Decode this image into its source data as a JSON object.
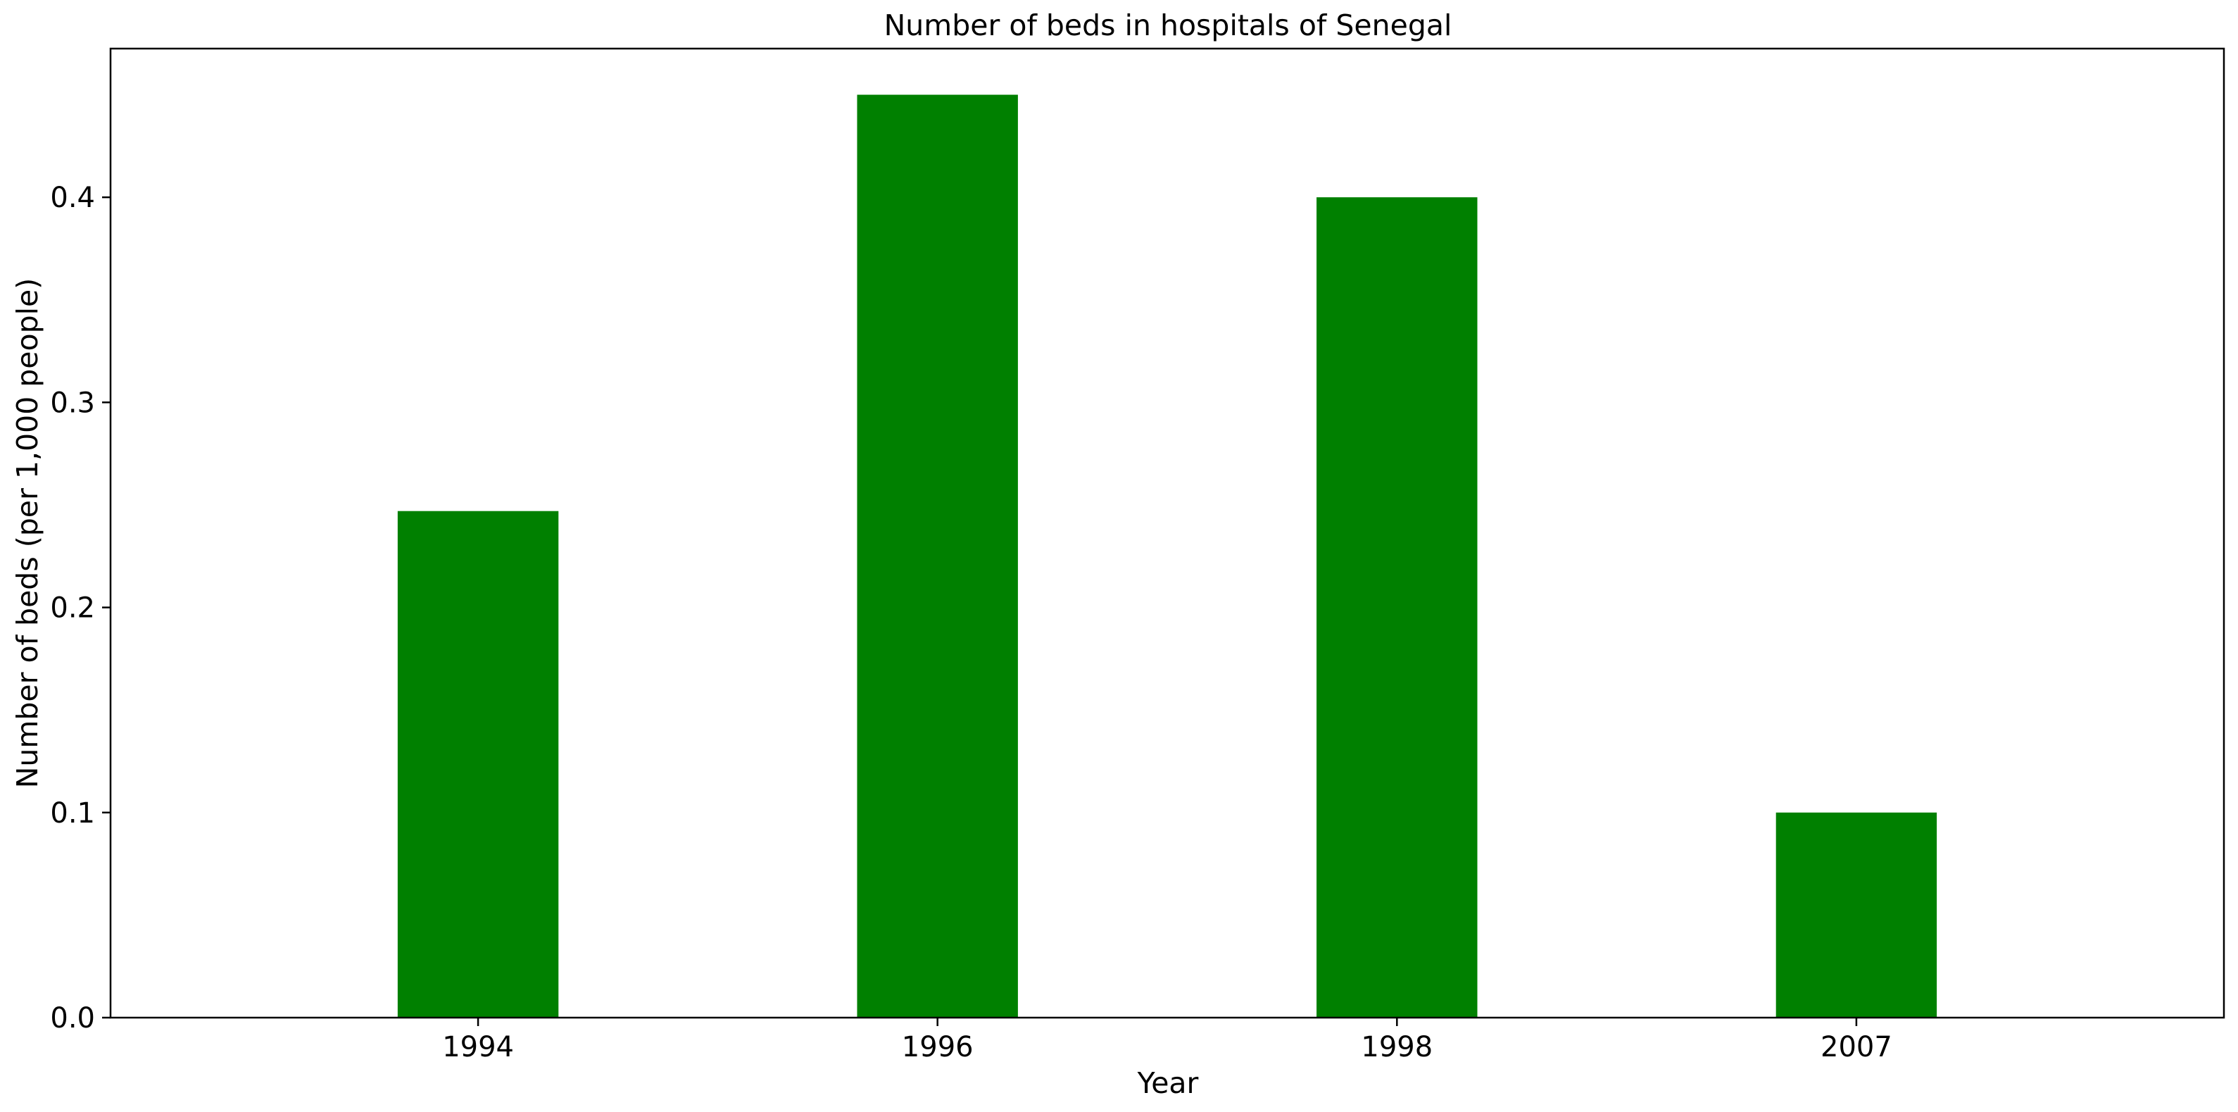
{
  "chart_data": {
    "type": "bar",
    "title": "Number of beds in hospitals of Senegal",
    "xlabel": "Year",
    "ylabel": "Number of beds (per 1,000 people)",
    "categories": [
      "1994",
      "1996",
      "1998",
      "2007"
    ],
    "values": [
      0.247,
      0.45,
      0.4,
      0.1
    ],
    "ylim": [
      0,
      0.4725
    ],
    "yticks": [
      0.0,
      0.1,
      0.2,
      0.3,
      0.4
    ],
    "ytick_labels": [
      "0.0",
      "0.1",
      "0.2",
      "0.3",
      "0.4"
    ],
    "bar_color": "#008000",
    "grid": false,
    "legend": "none"
  }
}
